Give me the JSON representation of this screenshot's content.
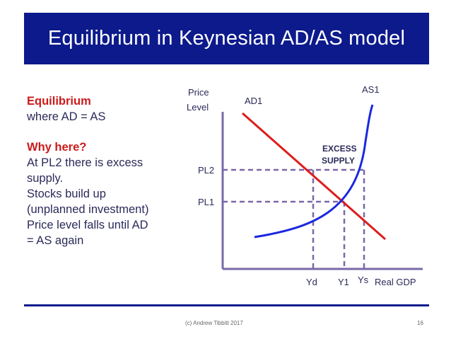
{
  "slide": {
    "title": "Equilibrium in Keynesian AD/AS model",
    "footer_credit": "(c) Andrew Tibbitt 2017",
    "page_number": "16"
  },
  "text": {
    "heading1": "Equilibrium",
    "line1": "where AD = AS",
    "heading2": "Why  here?",
    "body": [
      "At PL2 there is excess",
      "supply.",
      "Stocks build up",
      "(unplanned investment)",
      "Price level falls until AD",
      "= AS again"
    ]
  },
  "diagram": {
    "y_axis_label_1": "Price",
    "y_axis_label_2": "Level",
    "x_axis_label": "Real GDP",
    "ad_label": "AD1",
    "as_label": "AS1",
    "excess_label_1": "EXCESS",
    "excess_label_2": "SUPPLY",
    "pl2": "PL2",
    "pl1": "PL1",
    "yd": "Yd",
    "y1": "Y1",
    "ys": "Ys",
    "colors": {
      "axis": "#7a68a8",
      "ad": "#dd1c1c",
      "as": "#1a28e0",
      "guide": "#7a68a8"
    }
  }
}
